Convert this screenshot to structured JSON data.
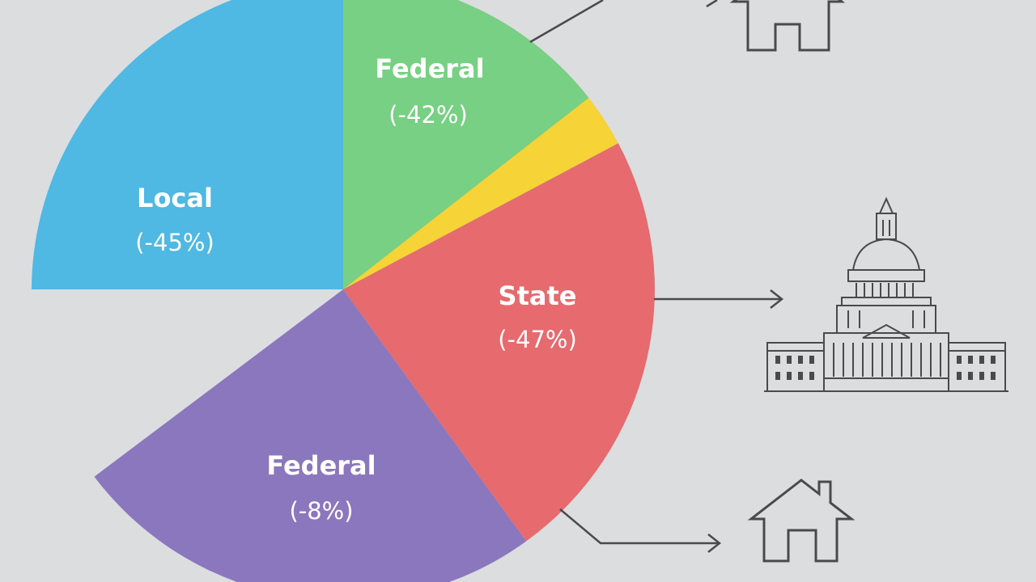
{
  "chart_data": {
    "type": "pie",
    "title": "",
    "slices": [
      {
        "label": "Local",
        "value_text": "(-45%)",
        "start_deg": 270,
        "end_deg": 90.5,
        "color": "#4fb8e3"
      },
      {
        "label": "Federal",
        "value_text": "(-42%)",
        "start_deg": 0,
        "end_deg": 52,
        "color": "#77d083"
      },
      {
        "label": "",
        "value_text": "",
        "start_deg": 52,
        "end_deg": 62,
        "color": "#f6d336"
      },
      {
        "label": "State",
        "value_text": "(-47%)",
        "start_deg": 62,
        "end_deg": 144,
        "color": "#e76a6e"
      },
      {
        "label": "Federal",
        "value_text": "(-8%)",
        "start_deg": 144,
        "end_deg": 233,
        "color": "#8b77bd"
      }
    ]
  },
  "icons": [
    "house-icon",
    "capitol-building-icon",
    "house-icon"
  ]
}
